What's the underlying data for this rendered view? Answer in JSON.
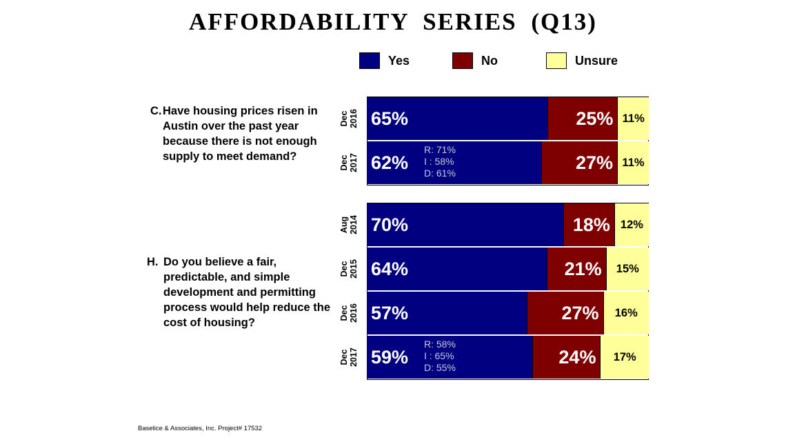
{
  "title": "AFFORDABILITY SERIES (Q13)",
  "legend": [
    {
      "label": "Yes",
      "color": "#000080"
    },
    {
      "label": "No",
      "color": "#7f0000"
    },
    {
      "label": "Unsure",
      "color": "#ffff99"
    }
  ],
  "questions": [
    {
      "letter": "C.",
      "text": "Have housing prices risen in Austin over the past year because there is not enough supply to meet demand?"
    },
    {
      "letter": "H.",
      "text": "Do you believe a fair, predictable, and simple development and permitting process would help reduce the cost of housing?"
    }
  ],
  "chart_data": {
    "type": "bar",
    "orientation": "horizontal",
    "stacked": true,
    "unit": "%",
    "series_names": [
      "Yes",
      "No",
      "Unsure"
    ],
    "groups": [
      {
        "question": "C",
        "rows": [
          {
            "period": "Dec",
            "year": "2016",
            "yes": 65,
            "no": 25,
            "unsure": 11
          },
          {
            "period": "Dec",
            "year": "2017",
            "yes": 62,
            "no": 27,
            "unsure": 11,
            "party": [
              "R: 71%",
              "I : 58%",
              "D: 61%"
            ]
          }
        ]
      },
      {
        "question": "H",
        "rows": [
          {
            "period": "Aug",
            "year": "2014",
            "yes": 70,
            "no": 18,
            "unsure": 12
          },
          {
            "period": "Dec",
            "year": "2015",
            "yes": 64,
            "no": 21,
            "unsure": 15
          },
          {
            "period": "Dec",
            "year": "2016",
            "yes": 57,
            "no": 27,
            "unsure": 16
          },
          {
            "period": "Dec",
            "year": "2017",
            "yes": 59,
            "no": 24,
            "unsure": 17,
            "party": [
              "R: 58%",
              "I : 65%",
              "D: 55%"
            ]
          }
        ]
      }
    ]
  },
  "footer": "Baselice & Associates, Inc. Project# 17532"
}
